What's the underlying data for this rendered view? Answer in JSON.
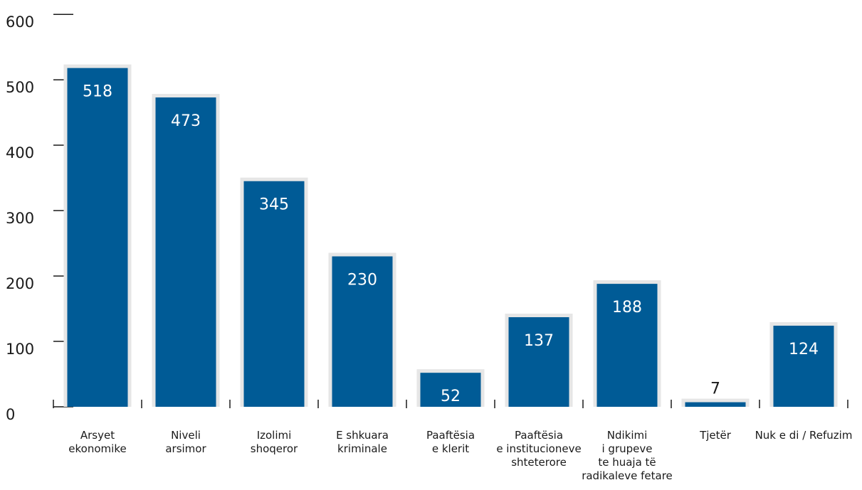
{
  "chart_data": {
    "type": "bar",
    "categories": [
      [
        "Arsyet",
        "ekonomike"
      ],
      [
        "Niveli",
        "arsimor"
      ],
      [
        "Izolimi",
        "shoqeror"
      ],
      [
        "E shkuara",
        "kriminale"
      ],
      [
        "Paaftësia",
        "e klerit"
      ],
      [
        "Paaftësia",
        "e institucioneve",
        "shteterore"
      ],
      [
        "Ndikimi",
        "i grupeve",
        "te huaja të",
        "radikaleve fetare"
      ],
      [
        "Tjetër"
      ],
      [
        "Nuk e di / Refuzim"
      ]
    ],
    "values": [
      518,
      473,
      345,
      230,
      52,
      137,
      188,
      7,
      124
    ],
    "ylim": [
      0,
      600
    ],
    "yticks": [
      "0",
      "100",
      "200",
      "300",
      "400",
      "500",
      "600"
    ],
    "title": "",
    "xlabel": "",
    "ylabel": "",
    "grid": false,
    "colors": {
      "bar": "#005b96",
      "bar_outline": "#e6e6e6",
      "axis": "#1a1a1a"
    }
  }
}
